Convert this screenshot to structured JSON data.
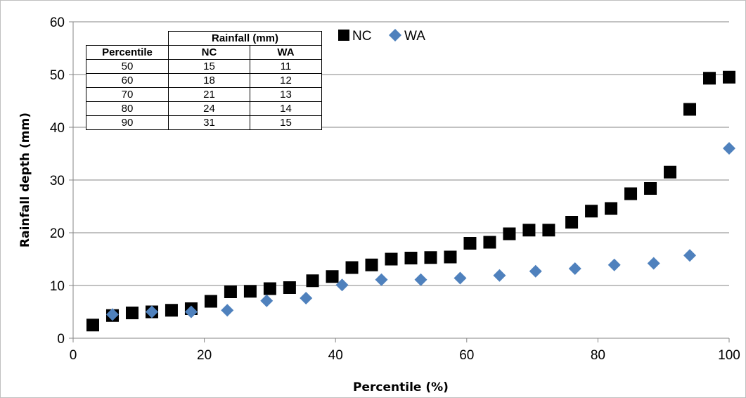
{
  "chart_data": {
    "type": "scatter",
    "xlabel": "Percentile (%)",
    "ylabel": "Rainfall depth (mm)",
    "xlim": [
      0,
      100
    ],
    "ylim": [
      0,
      60
    ],
    "x_ticks": [
      0,
      20,
      40,
      60,
      80,
      100
    ],
    "y_ticks": [
      0,
      10,
      20,
      30,
      40,
      50,
      60
    ],
    "grid": "horizontal",
    "legend_position": "top-center",
    "series": [
      {
        "name": "NC",
        "marker": "square",
        "color": "#000000",
        "x": [
          3,
          6,
          9,
          12,
          15,
          18,
          21,
          24,
          27,
          30,
          33,
          36.5,
          39.5,
          42.5,
          45.5,
          48.5,
          51.5,
          54.5,
          57.5,
          60.5,
          63.5,
          66.5,
          69.5,
          72.5,
          76,
          79,
          82,
          85,
          88,
          91,
          94,
          97,
          100
        ],
        "y": [
          2.5,
          4.3,
          4.8,
          5.0,
          5.3,
          5.6,
          7.0,
          8.8,
          8.9,
          9.4,
          9.6,
          10.9,
          11.7,
          13.4,
          13.9,
          15.0,
          15.2,
          15.3,
          15.4,
          18.0,
          18.2,
          19.8,
          20.5,
          20.5,
          22.0,
          24.1,
          24.6,
          27.4,
          28.4,
          31.5,
          43.4,
          49.3,
          49.5
        ]
      },
      {
        "name": "WA",
        "marker": "diamond",
        "color": "#4f81bd",
        "x": [
          6,
          12,
          18,
          23.5,
          29.5,
          35.5,
          41,
          47,
          53,
          59,
          65,
          70.5,
          76.5,
          82.5,
          88.5,
          94,
          100
        ],
        "y": [
          4.5,
          5.0,
          5.0,
          5.3,
          7.1,
          7.6,
          10.1,
          11.1,
          11.1,
          11.4,
          11.9,
          12.7,
          13.2,
          13.9,
          14.2,
          15.7,
          36.0
        ]
      }
    ],
    "inset_table": {
      "group_header": "Rainfall (mm)",
      "columns": [
        "Percentile",
        "NC",
        "WA"
      ],
      "rows": [
        [
          "50",
          "15",
          "11"
        ],
        [
          "60",
          "18",
          "12"
        ],
        [
          "70",
          "21",
          "13"
        ],
        [
          "80",
          "24",
          "14"
        ],
        [
          "90",
          "31",
          "15"
        ]
      ]
    }
  }
}
